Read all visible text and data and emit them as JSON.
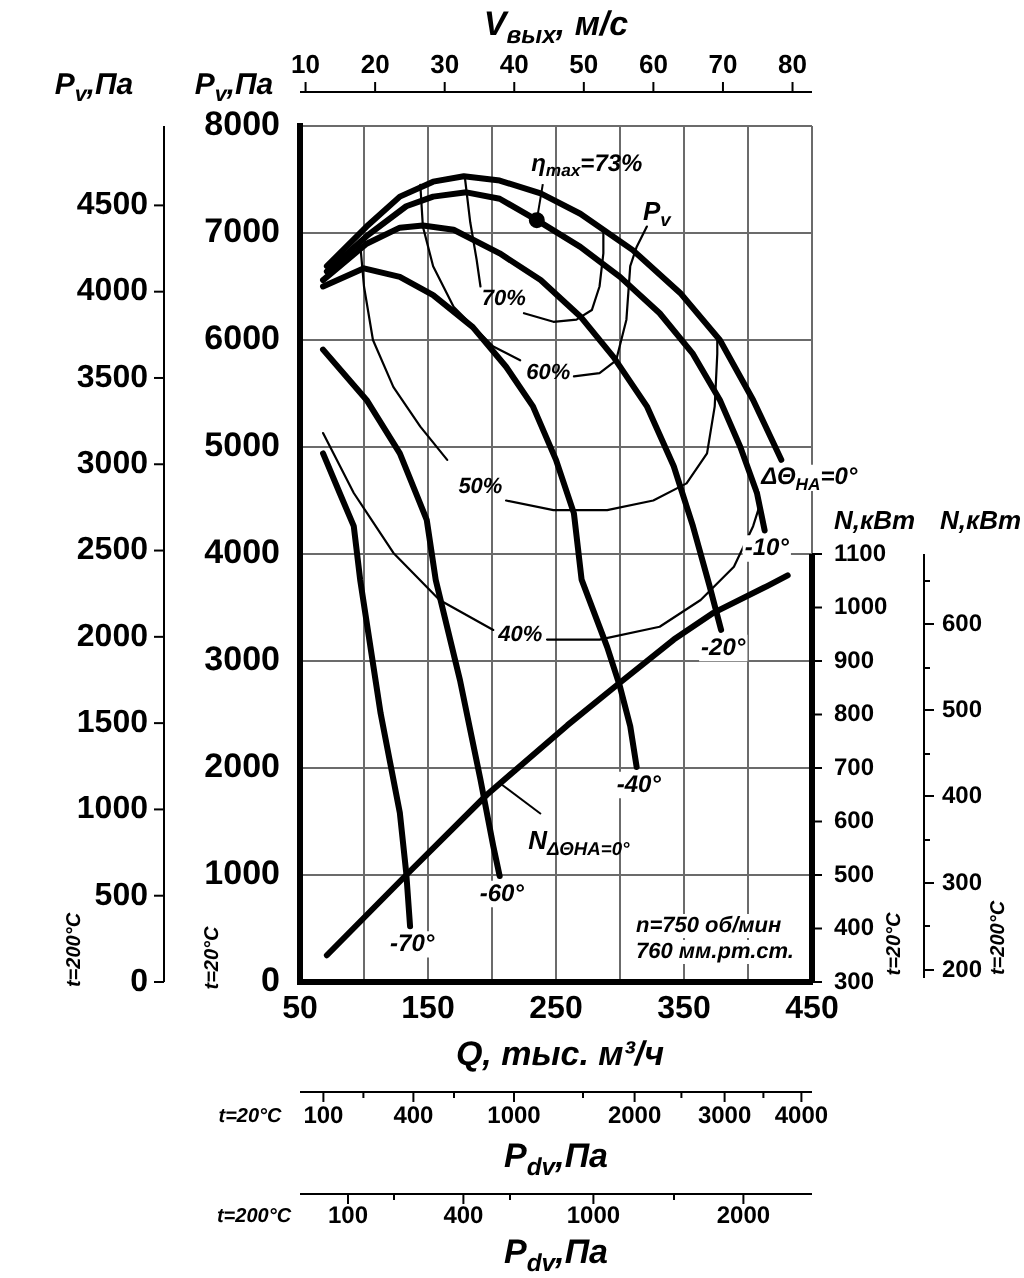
{
  "chart_data": {
    "type": "line",
    "xlabel": "Q, тыс. м³/ч",
    "ylabel": "P$_{v}$,Па",
    "x2label": "V$_{вых}$, м/с",
    "y2label": "P$_{v}$,Па",
    "y3label": "N,кВт",
    "xlim": [
      50,
      450
    ],
    "xticks": [
      50,
      {
        "value": 100,
        "label": null
      },
      150,
      {
        "value": 200,
        "label": null
      },
      250,
      {
        "value": 300,
        "label": null
      },
      350,
      {
        "value": 400,
        "label": null
      },
      450
    ],
    "ylim": [
      0,
      8000
    ],
    "yticks": [
      0,
      1000,
      2000,
      3000,
      4000,
      5000,
      6000,
      7000,
      8000
    ],
    "x2lim": [
      9.2,
      82.8
    ],
    "x2ticks": [
      10,
      20,
      30,
      40,
      50,
      60,
      70,
      80
    ],
    "y2lim": [
      0,
      4960
    ],
    "y2ticks": [
      0,
      500,
      1000,
      1500,
      2000,
      2500,
      3000,
      3500,
      4000,
      4500
    ],
    "y3lim": [
      300,
      1900
    ],
    "y3ticks": [
      300,
      400,
      500,
      600,
      700,
      800,
      900,
      1000,
      1100
    ],
    "grid": true,
    "series": [
      {
        "name": "ΔΘ$_{НА}$=0°",
        "color": "#000000",
        "x": [
          71,
          102,
          128,
          154,
          178,
          206,
          238,
          269,
          310,
          347,
          378,
          404,
          426
        ],
        "values": [
          6690,
          7060,
          7340,
          7480,
          7530,
          7490,
          7370,
          7180,
          6840,
          6440,
          6000,
          5440,
          4880
        ]
      },
      {
        "name": "-10°",
        "color": "#000000",
        "x": [
          71,
          102,
          133,
          154,
          180,
          206,
          235,
          269,
          300,
          331,
          357,
          378,
          394,
          407,
          413
        ],
        "values": [
          6640,
          6970,
          7250,
          7340,
          7380,
          7320,
          7120,
          6870,
          6590,
          6250,
          5870,
          5440,
          5000,
          4570,
          4220
        ]
      },
      {
        "name": "-20°",
        "color": "#000000",
        "x": [
          68,
          102,
          128,
          146,
          170,
          206,
          238,
          269,
          295,
          321,
          342,
          357,
          370,
          379
        ],
        "values": [
          6560,
          6900,
          7050,
          7070,
          7030,
          6810,
          6560,
          6220,
          5840,
          5380,
          4820,
          4260,
          3700,
          3290
        ]
      },
      {
        "name": "-40°",
        "color": "#000000",
        "x": [
          68,
          100,
          128,
          154,
          185,
          211,
          232,
          250,
          264,
          270,
          290,
          300,
          308,
          313
        ],
        "values": [
          6500,
          6670,
          6590,
          6420,
          6120,
          5750,
          5380,
          4880,
          4380,
          3760,
          3130,
          2760,
          2390,
          2010
        ]
      },
      {
        "name": "-60°",
        "color": "#000000",
        "x": [
          68,
          102,
          128,
          149,
          156,
          175,
          191,
          201,
          206
        ],
        "values": [
          5910,
          5440,
          4940,
          4320,
          3760,
          2820,
          1890,
          1270,
          990
        ]
      },
      {
        "name": "-70°",
        "color": "#000000",
        "x": [
          68,
          81,
          92,
          97,
          113,
          128,
          133,
          136
        ],
        "values": [
          4940,
          4570,
          4260,
          3760,
          2510,
          1580,
          1020,
          520
        ]
      },
      {
        "type": "line",
        "axis": "y3",
        "color": "#000000",
        "x": [
          71,
          133,
          196,
          259,
          295,
          342,
          373,
          415,
          431
        ],
        "values": [
          350,
          500,
          650,
          780,
          850,
          940,
          990,
          1040,
          1060
        ]
      },
      {
        "color": "#000000",
        "x": [
          179,
          183,
          188,
          191,
          209,
          225,
          248,
          266,
          278,
          284,
          287,
          287
        ],
        "values": [
          7500,
          7100,
          6750,
          6500,
          null,
          6250,
          6170,
          6190,
          6280,
          6500,
          6810,
          7030
        ]
      },
      {
        "color": "#000000",
        "x": [
          144,
          146,
          154,
          170,
          201,
          222,
          244,
          264,
          284,
          297,
          305,
          308,
          313,
          321
        ],
        "values": [
          7450,
          7060,
          6690,
          6310,
          5940,
          5810,
          null,
          5660,
          5690,
          5810,
          6190,
          6690,
          6870,
          7060
        ]
      },
      {
        "color": "#000000",
        "x": [
          97,
          100,
          107,
          123,
          144,
          165,
          191,
          211,
          248,
          290,
          326,
          352,
          368,
          374,
          376,
          376
        ],
        "values": [
          6900,
          6500,
          6000,
          5560,
          5190,
          4880,
          null,
          4500,
          4410,
          4410,
          4500,
          4660,
          4940,
          5380,
          5870,
          6040
        ]
      },
      {
        "color": "#000000",
        "x": [
          68,
          92,
          123,
          159,
          201,
          222,
          243,
          284,
          331,
          363,
          389,
          404,
          409
        ],
        "values": [
          5130,
          4570,
          4010,
          3570,
          3290,
          null,
          3200,
          3200,
          3320,
          3570,
          3880,
          4260,
          4450
        ]
      },
      {
        "type": "scatter",
        "marker": "circle",
        "color": "#000000",
        "x": [
          235
        ],
        "values": [
          7120
        ]
      }
    ],
    "annotations": [
      "t=200°C",
      "t=20°C",
      "t=20°C",
      "N,кВт",
      "600",
      "500",
      "400",
      "300",
      "200",
      "t=200°C",
      "t=20°C",
      "100",
      "400",
      "1000",
      "2000",
      "3000",
      "4000",
      "P$_{dv}$,Па",
      "t=200°C",
      "100",
      "400",
      "1000",
      "2000",
      "P$_{dv}$,Па",
      "n=750 об/мин",
      "760 мм.рт.ст.",
      {
        "text": "η$_{max}$=73%",
        "x": 235,
        "y": 7120
      },
      {
        "text": "P$_{v}$",
        "x": 310,
        "y": 6840
      },
      {
        "text": "70%",
        "x": 191,
        "y": 6500
      },
      {
        "text": "60%",
        "x": 222,
        "y": 5810
      },
      {
        "text": "50%",
        "x": 165,
        "y": 4880
      },
      {
        "text": "40%",
        "x": 201,
        "y": 3290
      },
      {
        "text": "N$_{ΔΘНА=0°}$",
        "x": 207,
        "y": 1850
      }
    ]
  }
}
